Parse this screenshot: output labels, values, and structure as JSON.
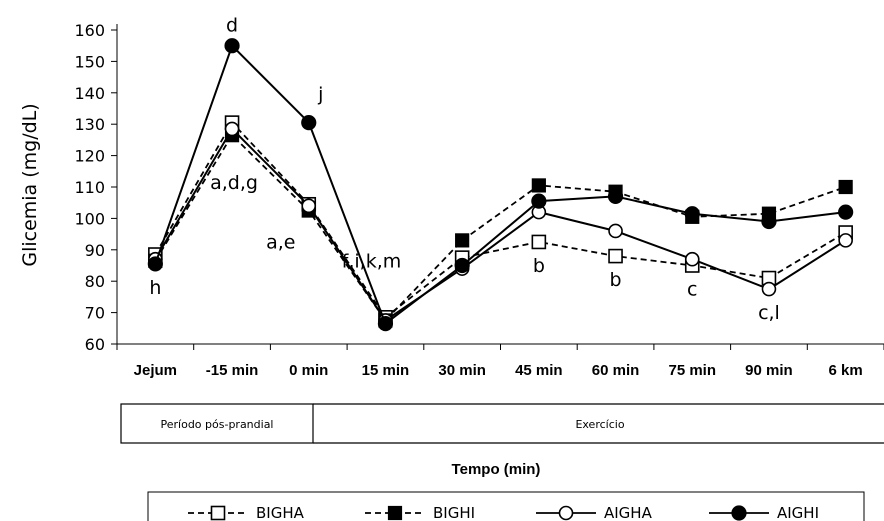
{
  "chart_data": {
    "type": "line",
    "ylabel": "Glicemia (mg/dL)",
    "xlabel": "Tempo (min)",
    "ylim": [
      60,
      160
    ],
    "yticks": [
      60,
      70,
      80,
      90,
      100,
      110,
      120,
      130,
      140,
      150,
      160
    ],
    "categories": [
      "Jejum",
      "-15 min",
      "0 min",
      "15 min",
      "30 min",
      "45 min",
      "60 min",
      "75 min",
      "90 min",
      "6 km"
    ],
    "grid": false,
    "legend_position": "bottom",
    "series": [
      {
        "name": "BIGHA",
        "style": "dashed",
        "marker": "open-square",
        "values": [
          88.5,
          130.5,
          104.5,
          68.5,
          87.5,
          92.5,
          88,
          85,
          81,
          95.5
        ]
      },
      {
        "name": "BIGHI",
        "style": "dashed",
        "marker": "filled-square",
        "values": [
          86.5,
          126.5,
          102.5,
          67.5,
          93,
          110.5,
          108.5,
          100.5,
          101.5,
          110
        ]
      },
      {
        "name": "AIGHA",
        "style": "solid",
        "marker": "open-circle",
        "values": [
          87,
          128.5,
          104,
          67.5,
          84,
          102,
          96,
          87,
          77.5,
          93
        ]
      },
      {
        "name": "AIGHI",
        "style": "solid",
        "marker": "filled-circle",
        "values": [
          85.5,
          155,
          130.5,
          66.5,
          85,
          105.5,
          107,
          101.5,
          99,
          102
        ]
      }
    ],
    "annotations": [
      {
        "text": "d",
        "category": "-15 min",
        "y": 155,
        "position": "above"
      },
      {
        "text": "a,d,g",
        "category": "-15 min",
        "y": 126.5,
        "position": "below"
      },
      {
        "text": "j",
        "category": "0 min",
        "y": 130.5,
        "position": "above-right"
      },
      {
        "text": "a,e",
        "category": "0 min",
        "y": 102.5,
        "position": "below-left"
      },
      {
        "text": "h",
        "category": "Jejum",
        "y": 85.5,
        "position": "below"
      },
      {
        "text": "f,i,k,m",
        "category": "15 min",
        "y": 68.5,
        "position": "above"
      },
      {
        "text": "b",
        "category": "45 min",
        "y": 92.5,
        "position": "below"
      },
      {
        "text": "b",
        "category": "60 min",
        "y": 88,
        "position": "below"
      },
      {
        "text": "c",
        "category": "75 min",
        "y": 85,
        "position": "below"
      },
      {
        "text": "c,l",
        "category": "90 min",
        "y": 77.5,
        "position": "below"
      }
    ],
    "periods": [
      {
        "label": "Período pós-prandial"
      },
      {
        "label": "Exercício"
      }
    ]
  }
}
